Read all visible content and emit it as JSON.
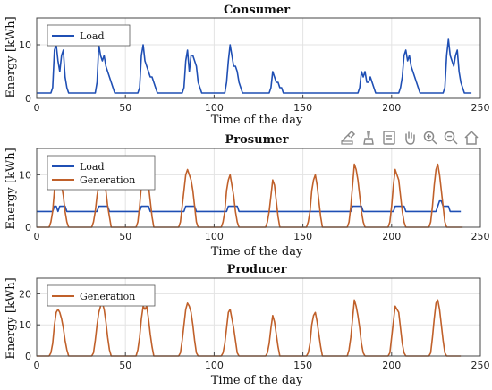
{
  "colors": {
    "load": "#1f4fb4",
    "generation": "#c0602a",
    "grid": "#e3e3e3",
    "axis": "#444444"
  },
  "toolbar": {
    "icons": [
      "export-icon",
      "brush-icon",
      "data-tips-icon",
      "pan-hand-icon",
      "zoom-in-icon",
      "zoom-out-icon",
      "home-icon"
    ]
  },
  "chart_data": [
    {
      "type": "line",
      "title": "Consumer",
      "xlabel": "Time of the day",
      "ylabel": "Energy [kWh]",
      "xlim": [
        0,
        250
      ],
      "ylim": [
        0,
        15
      ],
      "xticks": [
        0,
        50,
        100,
        150,
        200,
        250
      ],
      "yticks": [
        0,
        10
      ],
      "grid": true,
      "legend_position": "top-left",
      "series": [
        {
          "name": "Load",
          "color": "#1f4fb4",
          "values": [
            1,
            1,
            1,
            1,
            1,
            1,
            1,
            1,
            1,
            2,
            9,
            10,
            7,
            5,
            8,
            9,
            4,
            2,
            1,
            1,
            1,
            1,
            1,
            1,
            1,
            1,
            1,
            1,
            1,
            1,
            1,
            1,
            1,
            1,
            3,
            10,
            8,
            7,
            8,
            6,
            5,
            4,
            3,
            2,
            1,
            1,
            1,
            1,
            1,
            1,
            1,
            1,
            1,
            1,
            1,
            1,
            1,
            1,
            2,
            8,
            10,
            7,
            6,
            5,
            4,
            4,
            3,
            2,
            1,
            1,
            1,
            1,
            1,
            1,
            1,
            1,
            1,
            1,
            1,
            1,
            1,
            1,
            1,
            2,
            7,
            9,
            5,
            8,
            8,
            7,
            6,
            3,
            2,
            1,
            1,
            1,
            1,
            1,
            1,
            1,
            1,
            1,
            1,
            1,
            1,
            1,
            1,
            3,
            7,
            10,
            8,
            6,
            6,
            5,
            3,
            2,
            1,
            1,
            1,
            1,
            1,
            1,
            1,
            1,
            1,
            1,
            1,
            1,
            1,
            1,
            1,
            1,
            2,
            5,
            4,
            3,
            3,
            2,
            2,
            1,
            1,
            1,
            1,
            1,
            1,
            1,
            1,
            1,
            1,
            1,
            1,
            1,
            1,
            1,
            1,
            1,
            1,
            1,
            1,
            1,
            1,
            1,
            1,
            1,
            1,
            1,
            1,
            1,
            1,
            1,
            1,
            1,
            1,
            1,
            1,
            1,
            1,
            1,
            1,
            1,
            1,
            1,
            2,
            5,
            4,
            5,
            3,
            3,
            4,
            3,
            2,
            1,
            1,
            1,
            1,
            1,
            1,
            1,
            1,
            1,
            1,
            1,
            1,
            1,
            1,
            2,
            4,
            8,
            9,
            7,
            8,
            6,
            5,
            4,
            3,
            2,
            1,
            1,
            1,
            1,
            1,
            1,
            1,
            1,
            1,
            1,
            1,
            1,
            1,
            1,
            2,
            8,
            11,
            8,
            7,
            6,
            8,
            9,
            5,
            3,
            2,
            1,
            1,
            1,
            1,
            1
          ]
        }
      ]
    },
    {
      "type": "line",
      "title": "Prosumer",
      "xlabel": "Time of the day",
      "ylabel": "Energy [kWh]",
      "xlim": [
        0,
        250
      ],
      "ylim": [
        0,
        15
      ],
      "xticks": [
        0,
        50,
        100,
        150,
        200,
        250
      ],
      "yticks": [
        0,
        10
      ],
      "grid": true,
      "legend_position": "top-left",
      "series": [
        {
          "name": "Load",
          "color": "#1f4fb4",
          "values": [
            3,
            3,
            3,
            3,
            3,
            3,
            3,
            3,
            3,
            3,
            4,
            4,
            3,
            4,
            4,
            4,
            4,
            3,
            3,
            3,
            3,
            3,
            3,
            3,
            3,
            3,
            3,
            3,
            3,
            3,
            3,
            3,
            3,
            3,
            3,
            4,
            4,
            4,
            4,
            4,
            4,
            3,
            3,
            3,
            3,
            3,
            3,
            3,
            3,
            3,
            3,
            3,
            3,
            3,
            3,
            3,
            3,
            3,
            3,
            4,
            4,
            4,
            4,
            4,
            3,
            3,
            3,
            3,
            3,
            3,
            3,
            3,
            3,
            3,
            3,
            3,
            3,
            3,
            3,
            3,
            3,
            3,
            3,
            3,
            4,
            4,
            4,
            4,
            4,
            4,
            3,
            3,
            3,
            3,
            3,
            3,
            3,
            3,
            3,
            3,
            3,
            3,
            3,
            3,
            3,
            3,
            3,
            3,
            4,
            4,
            4,
            4,
            4,
            4,
            3,
            3,
            3,
            3,
            3,
            3,
            3,
            3,
            3,
            3,
            3,
            3,
            3,
            3,
            3,
            3,
            3,
            3,
            3,
            3,
            3,
            3,
            3,
            3,
            3,
            3,
            3,
            3,
            3,
            3,
            3,
            3,
            3,
            3,
            3,
            3,
            3,
            3,
            3,
            3,
            3,
            3,
            3,
            3,
            3,
            3,
            3,
            3,
            3,
            3,
            3,
            3,
            3,
            3,
            3,
            3,
            3,
            3,
            3,
            3,
            3,
            3,
            3,
            3,
            4,
            4,
            4,
            4,
            4,
            4,
            3,
            3,
            3,
            3,
            3,
            3,
            3,
            3,
            3,
            3,
            3,
            3,
            3,
            3,
            3,
            3,
            3,
            3,
            4,
            4,
            4,
            4,
            4,
            4,
            3,
            3,
            3,
            3,
            3,
            3,
            3,
            3,
            3,
            3,
            3,
            3,
            3,
            3,
            3,
            3,
            3,
            3,
            4,
            5,
            5,
            4,
            4,
            4,
            4,
            3,
            3,
            3,
            3,
            3,
            3,
            3
          ]
        },
        {
          "name": "Generation",
          "color": "#c0602a",
          "values": [
            0,
            0,
            0,
            0,
            0,
            0,
            0,
            0,
            1,
            3,
            7,
            9,
            10,
            9,
            8,
            6,
            3,
            1,
            0,
            0,
            0,
            0,
            0,
            0,
            0,
            0,
            0,
            0,
            0,
            0,
            0,
            0,
            1,
            3,
            6,
            8,
            9,
            10,
            9,
            7,
            4,
            2,
            0,
            0,
            0,
            0,
            0,
            0,
            0,
            0,
            0,
            0,
            0,
            0,
            0,
            0,
            0,
            1,
            4,
            8,
            10,
            9,
            10,
            8,
            5,
            2,
            0,
            0,
            0,
            0,
            0,
            0,
            0,
            0,
            0,
            0,
            0,
            0,
            0,
            0,
            0,
            1,
            4,
            7,
            10,
            11,
            10,
            9,
            7,
            4,
            1,
            0,
            0,
            0,
            0,
            0,
            0,
            0,
            0,
            0,
            0,
            0,
            0,
            0,
            0,
            1,
            3,
            7,
            9,
            10,
            8,
            6,
            3,
            1,
            0,
            0,
            0,
            0,
            0,
            0,
            0,
            0,
            0,
            0,
            0,
            0,
            0,
            0,
            0,
            0,
            1,
            3,
            6,
            9,
            8,
            5,
            2,
            0,
            0,
            0,
            0,
            0,
            0,
            0,
            0,
            0,
            0,
            0,
            0,
            0,
            0,
            0,
            0,
            1,
            3,
            7,
            9,
            10,
            8,
            5,
            2,
            0,
            0,
            0,
            0,
            0,
            0,
            0,
            0,
            0,
            0,
            0,
            0,
            0,
            0,
            0,
            1,
            4,
            8,
            12,
            11,
            9,
            6,
            3,
            1,
            0,
            0,
            0,
            0,
            0,
            0,
            0,
            0,
            0,
            0,
            0,
            0,
            0,
            0,
            1,
            4,
            8,
            11,
            10,
            9,
            6,
            3,
            1,
            0,
            0,
            0,
            0,
            0,
            0,
            0,
            0,
            0,
            0,
            0,
            0,
            0,
            0,
            1,
            4,
            8,
            11,
            12,
            10,
            7,
            4,
            1,
            0,
            0,
            0,
            0,
            0,
            0,
            0,
            0,
            0,
            0
          ]
        }
      ]
    },
    {
      "type": "line",
      "title": "Producer",
      "xlabel": "Time of the day",
      "ylabel": "Energy [kWh]",
      "xlim": [
        0,
        250
      ],
      "ylim": [
        0,
        25
      ],
      "xticks": [
        0,
        50,
        100,
        150,
        200,
        250
      ],
      "yticks": [
        0,
        10,
        20
      ],
      "grid": true,
      "legend_position": "top-left",
      "series": [
        {
          "name": "Generation",
          "color": "#c0602a",
          "values": [
            0,
            0,
            0,
            0,
            0,
            0,
            0,
            0,
            1,
            4,
            10,
            14,
            15,
            14,
            12,
            9,
            5,
            2,
            0,
            0,
            0,
            0,
            0,
            0,
            0,
            0,
            0,
            0,
            0,
            0,
            0,
            0,
            1,
            5,
            10,
            14,
            16,
            17,
            15,
            11,
            6,
            2,
            0,
            0,
            0,
            0,
            0,
            0,
            0,
            0,
            0,
            0,
            0,
            0,
            0,
            0,
            0,
            2,
            6,
            12,
            16,
            15,
            16,
            12,
            7,
            3,
            0,
            0,
            0,
            0,
            0,
            0,
            0,
            0,
            0,
            0,
            0,
            0,
            0,
            0,
            0,
            1,
            5,
            10,
            15,
            17,
            16,
            14,
            10,
            5,
            1,
            0,
            0,
            0,
            0,
            0,
            0,
            0,
            0,
            0,
            0,
            0,
            0,
            0,
            0,
            1,
            4,
            9,
            14,
            15,
            12,
            9,
            5,
            1,
            0,
            0,
            0,
            0,
            0,
            0,
            0,
            0,
            0,
            0,
            0,
            0,
            0,
            0,
            0,
            0,
            1,
            4,
            9,
            13,
            11,
            7,
            3,
            0,
            0,
            0,
            0,
            0,
            0,
            0,
            0,
            0,
            0,
            0,
            0,
            0,
            0,
            0,
            0,
            1,
            4,
            10,
            13,
            14,
            11,
            7,
            3,
            0,
            0,
            0,
            0,
            0,
            0,
            0,
            0,
            0,
            0,
            0,
            0,
            0,
            0,
            0,
            2,
            6,
            12,
            18,
            16,
            13,
            9,
            4,
            1,
            0,
            0,
            0,
            0,
            0,
            0,
            0,
            0,
            0,
            0,
            0,
            0,
            0,
            0,
            1,
            6,
            11,
            16,
            15,
            14,
            9,
            4,
            1,
            0,
            0,
            0,
            0,
            0,
            0,
            0,
            0,
            0,
            0,
            0,
            0,
            0,
            0,
            1,
            6,
            12,
            17,
            18,
            15,
            10,
            5,
            1,
            0,
            0,
            0,
            0,
            0,
            0,
            0,
            0,
            0
          ]
        }
      ]
    }
  ]
}
